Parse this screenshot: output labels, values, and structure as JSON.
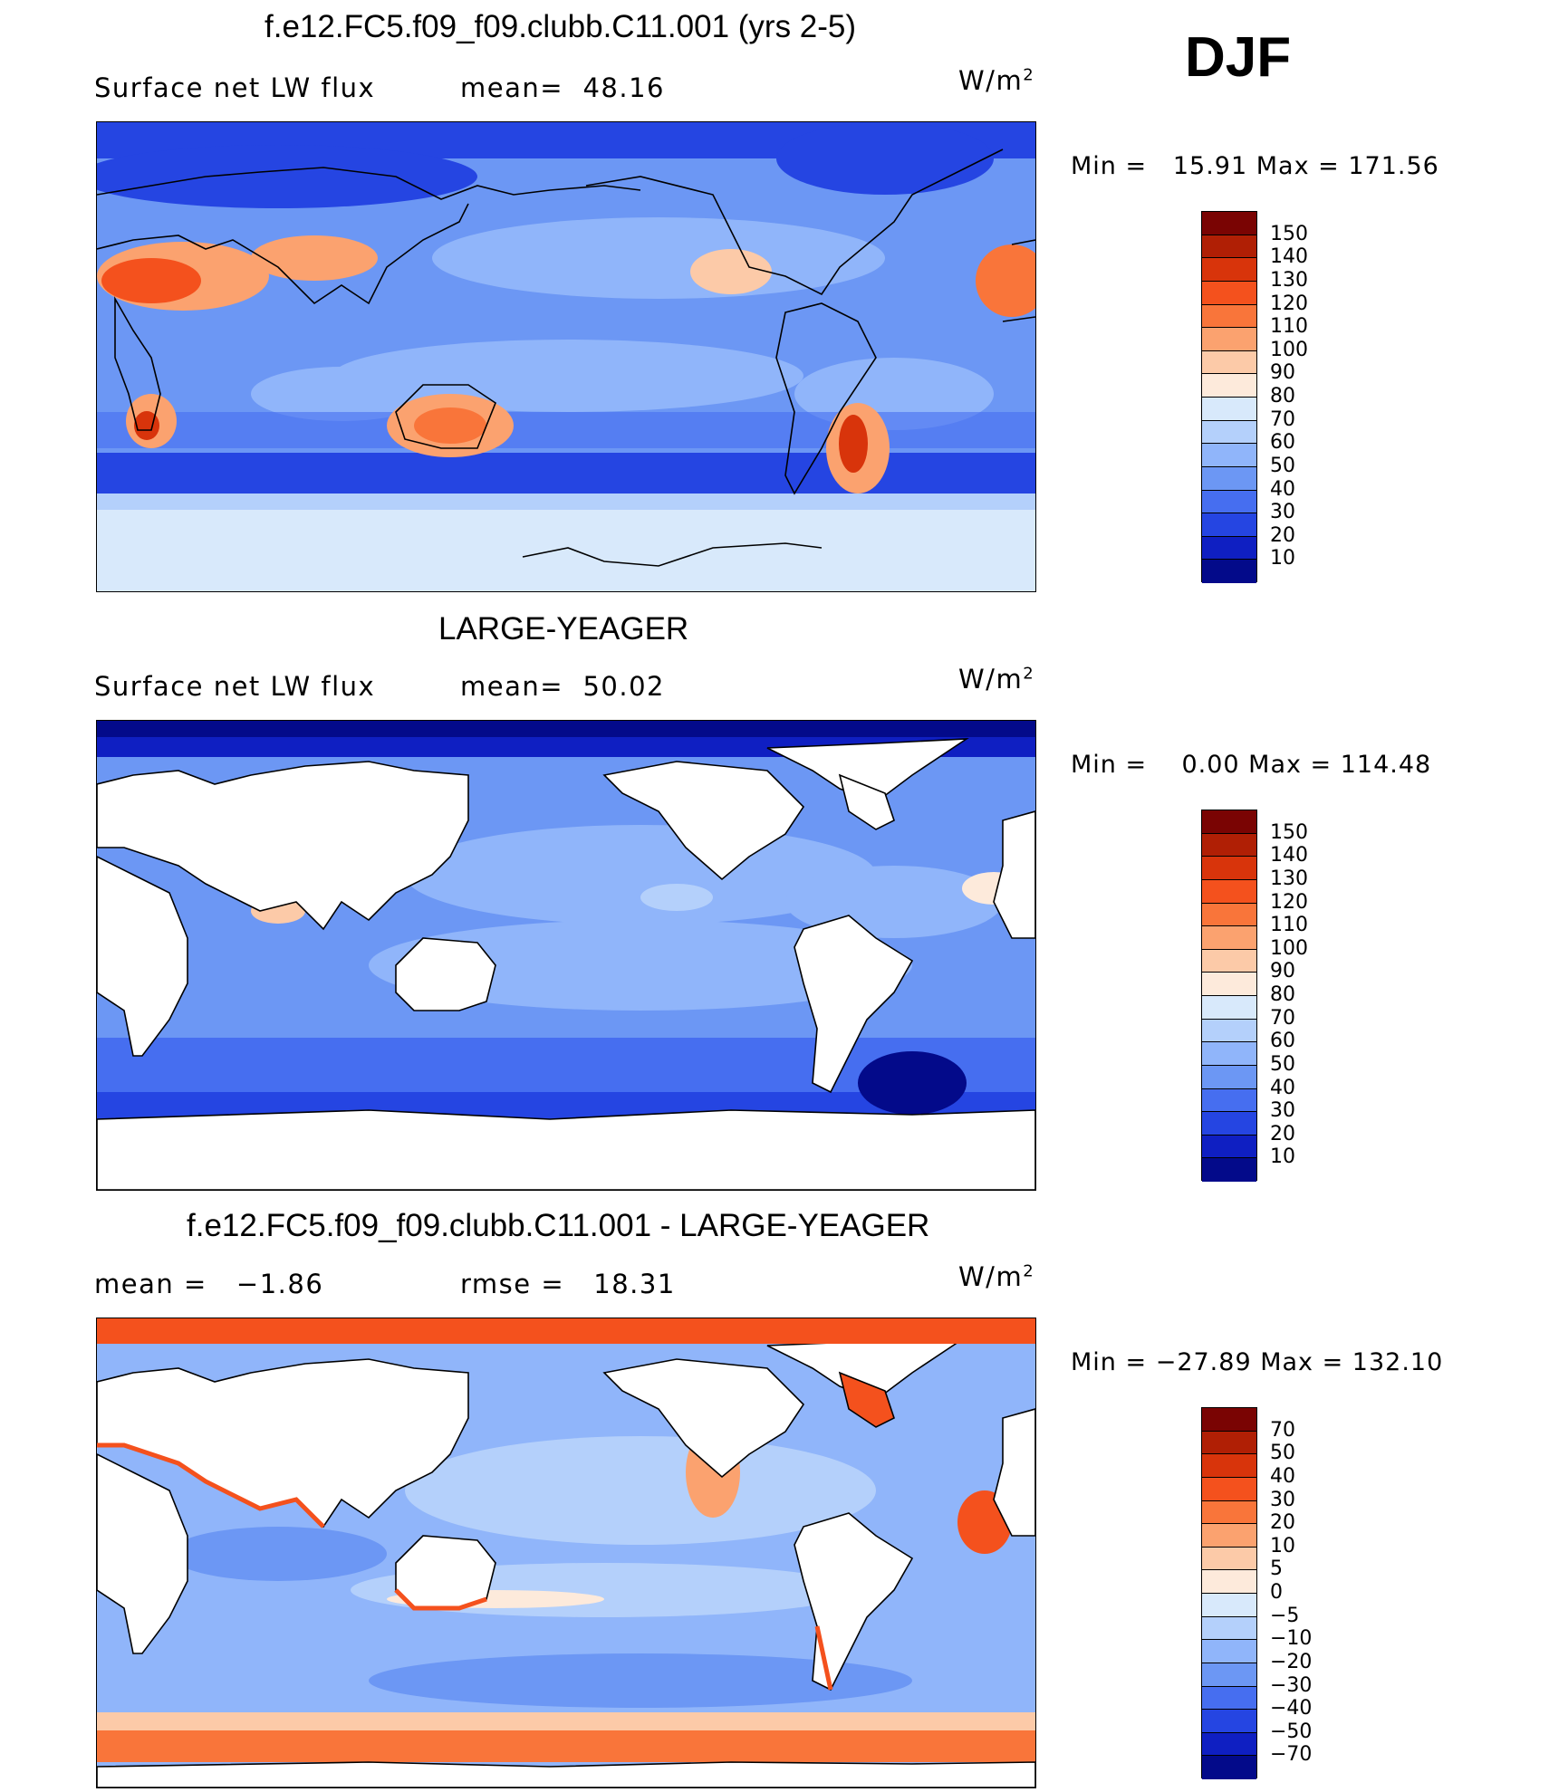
{
  "season": "DJF",
  "panels": [
    {
      "title": "f.e12.FC5.f09_f09.clubb.C11.001 (yrs 2-5)",
      "left_text": "Surface net LW flux",
      "right_text": "mean=  48.16",
      "unit": "W/m",
      "unit_sup": "2",
      "minmax": "Min =   15.91 Max = 171.56",
      "colorbar": {
        "labels": [
          "150",
          "140",
          "130",
          "120",
          "110",
          "100",
          "90",
          "80",
          "70",
          "60",
          "50",
          "40",
          "30",
          "20",
          "10"
        ],
        "colors": [
          "#7a0403",
          "#b01f05",
          "#d8340b",
          "#f4511d",
          "#f9753a",
          "#fba26f",
          "#fccaa8",
          "#fdeadb",
          "#d8e9fb",
          "#b4d0fb",
          "#90b5fa",
          "#6c97f4",
          "#466ef0",
          "#2545e2",
          "#0f1fc2",
          "#030a8a"
        ]
      }
    },
    {
      "title": "LARGE-YEAGER",
      "left_text": "Surface net LW flux",
      "right_text": "mean=  50.02",
      "unit": "W/m",
      "unit_sup": "2",
      "minmax": "Min =    0.00 Max = 114.48",
      "colorbar": {
        "labels": [
          "150",
          "140",
          "130",
          "120",
          "110",
          "100",
          "90",
          "80",
          "70",
          "60",
          "50",
          "40",
          "30",
          "20",
          "10"
        ],
        "colors": [
          "#7a0403",
          "#b01f05",
          "#d8340b",
          "#f4511d",
          "#f9753a",
          "#fba26f",
          "#fccaa8",
          "#fdeadb",
          "#d8e9fb",
          "#b4d0fb",
          "#90b5fa",
          "#6c97f4",
          "#466ef0",
          "#2545e2",
          "#0f1fc2",
          "#030a8a"
        ]
      }
    },
    {
      "title": "f.e12.FC5.f09_f09.clubb.C11.001 - LARGE-YEAGER",
      "left_text": "mean =   −1.86",
      "right_text": "rmse =   18.31",
      "unit": "W/m",
      "unit_sup": "2",
      "minmax": "Min = −27.89 Max = 132.10",
      "colorbar": {
        "labels": [
          "70",
          "50",
          "40",
          "30",
          "20",
          "10",
          "5",
          "0",
          "−5",
          "−10",
          "−20",
          "−30",
          "−40",
          "−50",
          "−70"
        ],
        "colors": [
          "#7a0403",
          "#b01f05",
          "#d8340b",
          "#f4511d",
          "#f9753a",
          "#fba26f",
          "#fccaa8",
          "#fdeadb",
          "#d8e9fb",
          "#b4d0fb",
          "#90b5fa",
          "#6c97f4",
          "#466ef0",
          "#2545e2",
          "#0f1fc2",
          "#030a8a"
        ]
      }
    }
  ]
}
